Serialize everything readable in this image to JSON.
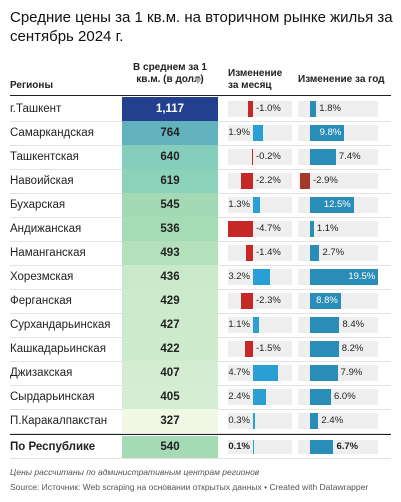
{
  "header": {
    "title": "Средние цены за 1 кв.м. на вторичном рынке жилья за сентябрь 2024 г."
  },
  "table": {
    "columns": [
      "Регионы",
      "В среднем за 1 кв.м. (в долл)",
      "Изменение за месяц",
      "Изменение за год"
    ],
    "price_colors": [
      "#f1f8e6",
      "#a9ddb4",
      "#6cc3c0",
      "#3b73b3",
      "#23408f"
    ],
    "month_colors": {
      "negative": "#c62828",
      "positive": "#2a9fd6"
    },
    "year_colors": {
      "negative": "#a33a2a",
      "positive": "#2a8db8"
    },
    "rows": [
      {
        "region": "г.Ташкент",
        "price": {
          "value": 1117,
          "label": "1,117"
        },
        "month": -1.0,
        "month_label": "-1.0%",
        "year": 1.8,
        "year_label": "1.8%"
      },
      {
        "region": "Самаркандская",
        "price": 764,
        "month": 1.9,
        "month_label": "1.9%",
        "year": 9.8,
        "year_label": "9.8%"
      },
      {
        "region": "Ташкентская",
        "price": 640,
        "month": -0.2,
        "month_label": "-0.2%",
        "year": 7.4,
        "year_label": "7.4%"
      },
      {
        "region": "Навоийская",
        "price": 619,
        "month": -2.2,
        "month_label": "-2.2%",
        "year": -2.9,
        "year_label": "-2.9%"
      },
      {
        "region": "Бухарская",
        "price": 545,
        "month": 1.3,
        "month_label": "1.3%",
        "year": 12.5,
        "year_label": "12.5%"
      },
      {
        "region": "Андижанская",
        "price": 536,
        "month": -4.7,
        "month_label": "-4.7%",
        "year": 1.1,
        "year_label": "1.1%"
      },
      {
        "region": "Наманганская",
        "price": 493,
        "month": -1.4,
        "month_label": "-1.4%",
        "year": 2.7,
        "year_label": "2.7%"
      },
      {
        "region": "Хорезмская",
        "price": 436,
        "month": 3.2,
        "month_label": "3.2%",
        "year": 19.5,
        "year_label": "19.5%"
      },
      {
        "region": "Ферганская",
        "price": 429,
        "month": -2.3,
        "month_label": "-2.3%",
        "year": 8.8,
        "year_label": "8.8%"
      },
      {
        "region": "Сурхандарьинская",
        "price": 427,
        "month": 1.1,
        "month_label": "1.1%",
        "year": 8.4,
        "year_label": "8.4%"
      },
      {
        "region": "Кашкадарьинская",
        "price": 422,
        "month": -1.5,
        "month_label": "-1.5%",
        "year": 8.2,
        "year_label": "8.2%"
      },
      {
        "region": "Джизакская",
        "price": 407,
        "month": 4.7,
        "month_label": "4.7%",
        "year": 7.9,
        "year_label": "7.9%"
      },
      {
        "region": "Сырдарьинская",
        "price": 405,
        "month": 2.4,
        "month_label": "2.4%",
        "year": 6.0,
        "year_label": "6.0%"
      },
      {
        "region": "П.Каракалпакстан",
        "price": 327,
        "month": 0.3,
        "month_label": "0.3%",
        "year": 2.4,
        "year_label": "2.4%"
      }
    ],
    "total": {
      "region": "По Республике",
      "price": 540,
      "month": 0.1,
      "month_label": "0.1%",
      "year": 6.7,
      "year_label": "6.7%"
    }
  },
  "footer": {
    "note": "Цены рассчитаны по административным центрам регионов",
    "source": "Source: Источник: Web scraping на основании открытых данных • Created with Datawrapper"
  }
}
